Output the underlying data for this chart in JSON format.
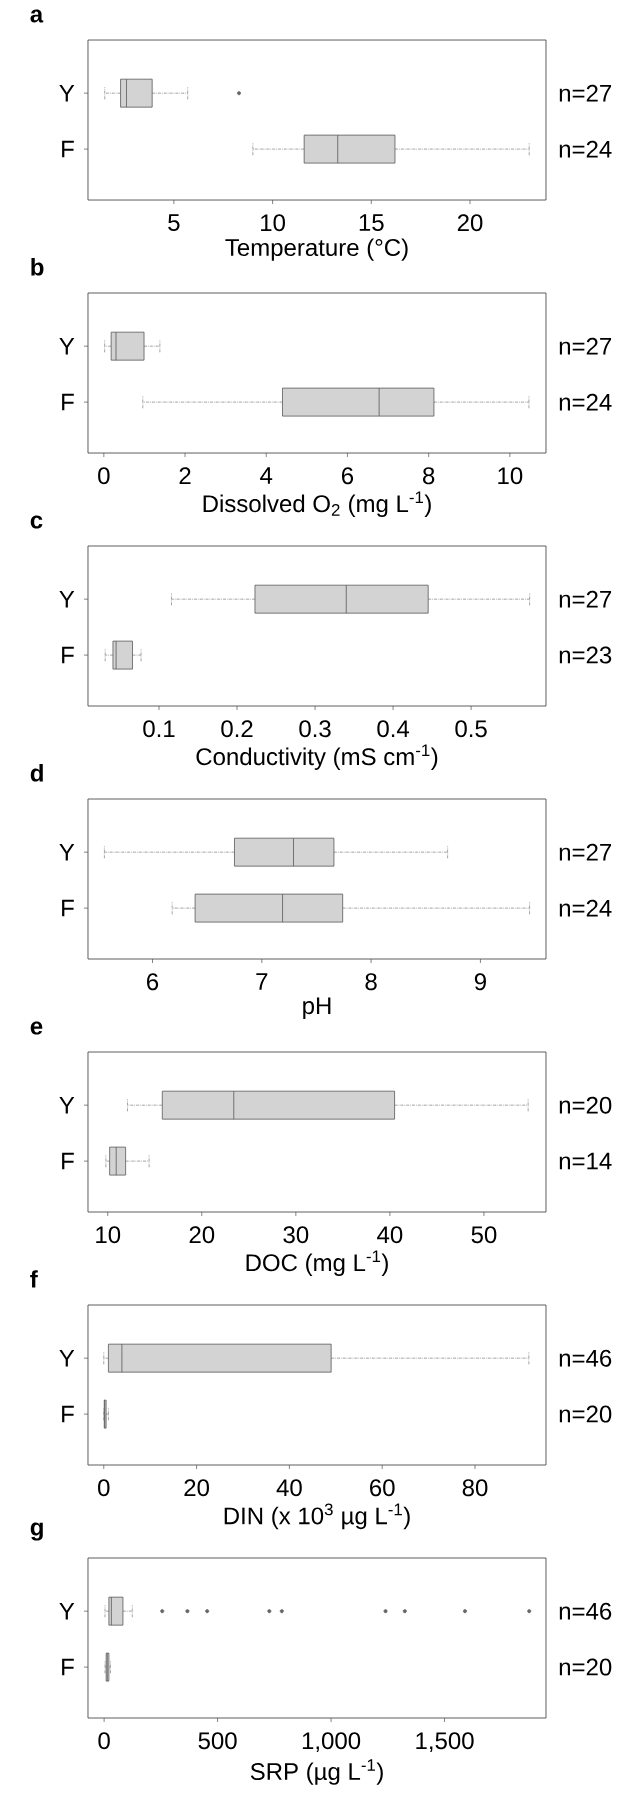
{
  "chart_data": [
    {
      "type": "box",
      "orientation": "horizontal",
      "title": "a",
      "xlabel": "Temperature (°C)",
      "categories": [
        "Y",
        "F"
      ],
      "color": "#d3d3d3",
      "xlim": [
        0.65,
        23.85
      ],
      "xticks": [
        5,
        10,
        15,
        20
      ],
      "annotations": [
        "n=27",
        "n=24"
      ],
      "boxes": [
        {
          "low": 1.5,
          "q1": 2.3,
          "median": 2.6,
          "q3": 3.9,
          "high": 5.7,
          "outliers": [
            8.3
          ]
        },
        {
          "low": 9.0,
          "q1": 11.6,
          "median": 13.3,
          "q3": 16.2,
          "high": 23.0
        }
      ]
    },
    {
      "type": "box",
      "orientation": "horizontal",
      "title": "b",
      "xlabel": "Dissolved O$_{2}$ (mg L$^{-1}$)",
      "categories": [
        "Y",
        "F"
      ],
      "color": "#d3d3d3",
      "xlim": [
        -0.39,
        10.89
      ],
      "xticks": [
        0,
        2,
        4,
        6,
        8,
        10
      ],
      "annotations": [
        "n=27",
        "n=24"
      ],
      "boxes": [
        {
          "low": 0.02,
          "q1": 0.18,
          "median": 0.3,
          "q3": 0.99,
          "high": 1.38
        },
        {
          "low": 0.96,
          "q1": 4.4,
          "median": 6.78,
          "q3": 8.13,
          "high": 10.47
        }
      ]
    },
    {
      "type": "box",
      "orientation": "horizontal",
      "title": "c",
      "xlabel": "Conductivity (mS cm$^{-1}$)",
      "categories": [
        "Y",
        "F"
      ],
      "color": "#d3d3d3",
      "xlim": [
        0.009,
        0.596
      ],
      "xticks": [
        0.1,
        0.2,
        0.3,
        0.4,
        0.5
      ],
      "annotations": [
        "n=27",
        "n=23"
      ],
      "boxes": [
        {
          "low": 0.116,
          "q1": 0.223,
          "median": 0.34,
          "q3": 0.445,
          "high": 0.575
        },
        {
          "low": 0.031,
          "q1": 0.041,
          "median": 0.045,
          "q3": 0.066,
          "high": 0.077
        }
      ]
    },
    {
      "type": "box",
      "orientation": "horizontal",
      "title": "d",
      "xlabel": "pH",
      "categories": [
        "Y",
        "F"
      ],
      "color": "#d3d3d3",
      "xlim": [
        5.41,
        9.6
      ],
      "xticks": [
        6,
        7,
        8,
        9
      ],
      "annotations": [
        "n=27",
        "n=24"
      ],
      "boxes": [
        {
          "low": 5.56,
          "q1": 6.75,
          "median": 7.29,
          "q3": 7.66,
          "high": 8.7
        },
        {
          "low": 6.18,
          "q1": 6.39,
          "median": 7.19,
          "q3": 7.74,
          "high": 9.45
        }
      ]
    },
    {
      "type": "box",
      "orientation": "horizontal",
      "title": "e",
      "xlabel": "DOC (mg L$^{-1}$)",
      "categories": [
        "Y",
        "F"
      ],
      "color": "#d3d3d3",
      "xlim": [
        7.9,
        56.6
      ],
      "xticks": [
        10,
        20,
        30,
        40,
        50
      ],
      "annotations": [
        "n=20",
        "n=14"
      ],
      "boxes": [
        {
          "low": 12.1,
          "q1": 15.8,
          "median": 23.4,
          "q3": 40.5,
          "high": 54.7
        },
        {
          "low": 9.8,
          "q1": 10.2,
          "median": 10.9,
          "q3": 11.9,
          "high": 14.4
        }
      ]
    },
    {
      "type": "box",
      "orientation": "horizontal",
      "title": "f",
      "xlabel": "DIN (x 10$^{3}$ µg L$^{-1}$)",
      "categories": [
        "Y",
        "F"
      ],
      "color": "#d3d3d3",
      "xlim": [
        -3.4,
        95.3
      ],
      "xticks": [
        0,
        20,
        40,
        60,
        80
      ],
      "annotations": [
        "n=46",
        "n=20"
      ],
      "boxes": [
        {
          "low": 0.0,
          "q1": 1.0,
          "median": 3.9,
          "q3": 49.0,
          "high": 91.6
        },
        {
          "low": 0.0,
          "q1": 0.1,
          "median": 0.2,
          "q3": 0.5,
          "high": 1.0
        }
      ]
    },
    {
      "type": "box",
      "orientation": "horizontal",
      "title": "g",
      "xlabel": "SRP (µg L$^{-1}$)",
      "categories": [
        "Y",
        "F"
      ],
      "color": "#d3d3d3",
      "xlim": [
        -71,
        1947
      ],
      "xticks": [
        0,
        500,
        {
          "value": 1000,
          "label": "1,000"
        },
        {
          "value": 1500,
          "label": "1,500"
        }
      ],
      "annotations": [
        "n=46",
        "n=20"
      ],
      "boxes": [
        {
          "low": 4,
          "q1": 21,
          "median": 32,
          "q3": 83,
          "high": 124,
          "outliers": [
            256,
            367,
            454,
            728,
            783,
            1240,
            1325,
            1590,
            1873
          ]
        },
        {
          "low": 4,
          "q1": 9,
          "median": 14,
          "q3": 21,
          "high": 28
        }
      ]
    }
  ]
}
